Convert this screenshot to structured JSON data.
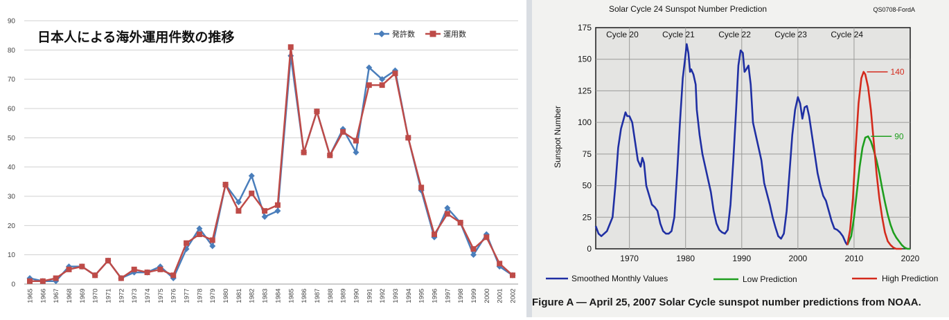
{
  "chart_data": [
    {
      "type": "line",
      "title": "日本人による海外運用件数の推移",
      "categories": [
        "1965",
        "1966",
        "1967",
        "1968",
        "1969",
        "1970",
        "1971",
        "1972",
        "1973",
        "1974",
        "1975",
        "1976",
        "1977",
        "1978",
        "1979",
        "1980",
        "1981",
        "1982",
        "1983",
        "1984",
        "1985",
        "1986",
        "1987",
        "1988",
        "1989",
        "1990",
        "1991",
        "1992",
        "1993",
        "1994",
        "1995",
        "1996",
        "1997",
        "1998",
        "1999",
        "2000",
        "2001",
        "2002"
      ],
      "series": [
        {
          "name": "発許数",
          "color": "#4a7ebb",
          "marker": "diamond",
          "values": [
            2,
            1,
            1,
            6,
            6,
            3,
            8,
            2,
            4,
            4,
            6,
            2,
            12,
            19,
            13,
            34,
            28,
            37,
            23,
            25,
            78,
            45,
            59,
            44,
            53,
            45,
            74,
            70,
            73,
            50,
            32,
            16,
            26,
            21,
            10,
            17,
            6,
            3
          ]
        },
        {
          "name": "運用数",
          "color": "#be4b48",
          "marker": "square",
          "values": [
            1,
            1,
            2,
            5,
            6,
            3,
            8,
            2,
            5,
            4,
            5,
            3,
            14,
            17,
            15,
            34,
            25,
            31,
            25,
            27,
            81,
            45,
            59,
            44,
            52,
            49,
            68,
            68,
            72,
            50,
            33,
            17,
            24,
            21,
            12,
            16,
            7,
            3
          ]
        }
      ],
      "ylim": [
        0,
        90
      ],
      "yticks": [
        0,
        10,
        20,
        30,
        40,
        50,
        60,
        70,
        80,
        90
      ],
      "grid": "horizontal",
      "legend": "top-right"
    },
    {
      "type": "line",
      "title": "Solar Cycle 24 Sunspot Number Prediction",
      "corner_label": "QS0708-FordA",
      "ylabel": "Sunspot Number",
      "xlim": [
        1964,
        2020
      ],
      "ylim": [
        0,
        175
      ],
      "xticks": [
        1970,
        1980,
        1990,
        2000,
        2010,
        2020
      ],
      "yticks": [
        0,
        25,
        50,
        75,
        100,
        125,
        150,
        175
      ],
      "cycle_labels": [
        {
          "text": "Cycle 20",
          "x": 1968
        },
        {
          "text": "Cycle 21",
          "x": 1978
        },
        {
          "text": "Cycle 22",
          "x": 1988
        },
        {
          "text": "Cycle 23",
          "x": 1998
        },
        {
          "text": "Cycle 24",
          "x": 2008
        }
      ],
      "series": [
        {
          "name": "Smoothed Monthly Values",
          "color": "#1f2fa3",
          "x": [
            1964,
            1964.5,
            1965,
            1966,
            1967,
            1967.5,
            1968,
            1968.5,
            1969,
            1969.3,
            1969.6,
            1970,
            1970.5,
            1971,
            1971.5,
            1972,
            1972.3,
            1972.6,
            1973,
            1974,
            1974.5,
            1975,
            1975.5,
            1976,
            1976.5,
            1977,
            1977.5,
            1978,
            1978.5,
            1979,
            1979.5,
            1979.9,
            1980.2,
            1980.5,
            1980.8,
            1981,
            1981.4,
            1981.8,
            1982,
            1982.5,
            1983,
            1983.5,
            1984,
            1984.5,
            1985,
            1985.5,
            1986,
            1986.5,
            1987,
            1987.5,
            1988,
            1988.5,
            1989,
            1989.4,
            1989.8,
            1990.2,
            1990.5,
            1990.8,
            1991.2,
            1991.6,
            1992,
            1992.5,
            1993,
            1993.5,
            1994,
            1995,
            1995.5,
            1996,
            1996.5,
            1997,
            1997.5,
            1998,
            1998.5,
            1999,
            1999.5,
            2000,
            2000.4,
            2000.8,
            2001.2,
            2001.6,
            2002,
            2002.5,
            2003,
            2003.5,
            2004,
            2004.5,
            2005,
            2005.5,
            2006,
            2006.5,
            2007,
            2007.5,
            2008,
            2008.5,
            2008.8
          ],
          "values": [
            18,
            12,
            10,
            14,
            25,
            50,
            80,
            95,
            103,
            108,
            105,
            105,
            100,
            85,
            70,
            65,
            72,
            68,
            50,
            35,
            33,
            30,
            20,
            14,
            12,
            12,
            14,
            25,
            60,
            100,
            135,
            150,
            162,
            155,
            140,
            142,
            138,
            130,
            110,
            90,
            75,
            65,
            55,
            45,
            30,
            20,
            15,
            13,
            12,
            15,
            35,
            70,
            110,
            145,
            157,
            155,
            140,
            142,
            145,
            130,
            100,
            90,
            80,
            70,
            52,
            35,
            25,
            17,
            10,
            8,
            12,
            30,
            60,
            90,
            110,
            120,
            115,
            103,
            112,
            113,
            105,
            90,
            75,
            60,
            50,
            42,
            38,
            30,
            22,
            16,
            15,
            13,
            10,
            5,
            3
          ]
        },
        {
          "name": "Low Prediction",
          "color": "#1e9e1e",
          "x": [
            2008.8,
            2009.5,
            2010,
            2010.5,
            2011,
            2011.5,
            2012,
            2012.5,
            2013,
            2013.5,
            2014,
            2014.5,
            2015,
            2015.5,
            2016,
            2016.5,
            2017,
            2017.5,
            2018,
            2018.5,
            2019,
            2019.5,
            2020
          ],
          "values": [
            3,
            10,
            25,
            45,
            65,
            80,
            88,
            89,
            85,
            78,
            70,
            60,
            48,
            37,
            27,
            19,
            13,
            9,
            6,
            3,
            1,
            0,
            0
          ]
        },
        {
          "name": "High Prediction",
          "color": "#d42a1c",
          "x": [
            2008.8,
            2009.3,
            2009.8,
            2010.3,
            2010.8,
            2011.3,
            2011.7,
            2012,
            2012.5,
            2013,
            2013.5,
            2014,
            2014.5,
            2015,
            2015.5,
            2016,
            2016.5,
            2017,
            2017.5,
            2018,
            2018.5
          ],
          "values": [
            3,
            15,
            40,
            80,
            115,
            135,
            140,
            138,
            128,
            110,
            85,
            60,
            40,
            25,
            13,
            6,
            3,
            1,
            0,
            0,
            0
          ]
        }
      ],
      "annotations": [
        {
          "text": "140",
          "color": "#d42a1c",
          "x": 2011.8,
          "y": 140
        },
        {
          "text": "90",
          "color": "#1e9e1e",
          "x": 2012.5,
          "y": 89
        }
      ],
      "caption": "Figure A  —  April 25, 2007 Solar Cycle sunspot number predictions from NOAA."
    }
  ]
}
